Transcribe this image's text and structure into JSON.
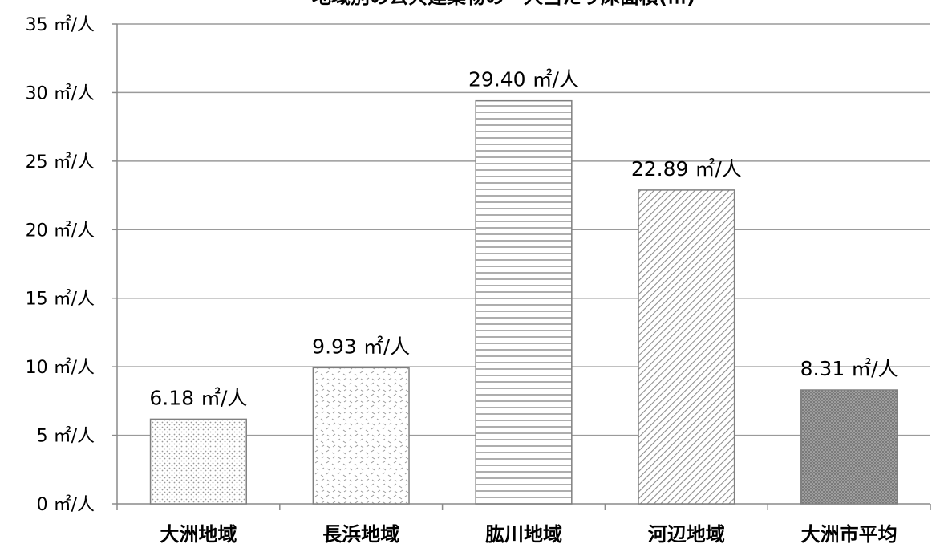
{
  "chart_data": {
    "type": "bar",
    "title": "地域別の公共建築物の一人当たり床面積(㎡)",
    "categories": [
      "大洲地域",
      "長浜地域",
      "肱川地域",
      "河辺地域",
      "大洲市平均"
    ],
    "values": [
      6.18,
      9.93,
      29.4,
      22.89,
      8.31
    ],
    "data_labels": [
      "6.18 ㎡/人",
      "9.93 ㎡/人",
      "29.40 ㎡/人",
      "22.89 ㎡/人",
      "8.31 ㎡/人"
    ],
    "y_ticks": [
      0,
      5,
      10,
      15,
      20,
      25,
      30,
      35
    ],
    "y_tick_labels": [
      "0 ㎡/人",
      "5 ㎡/人",
      "10 ㎡/人",
      "15 ㎡/人",
      "20 ㎡/人",
      "25 ㎡/人",
      "30 ㎡/人",
      "35 ㎡/人"
    ],
    "ylim": [
      0,
      35
    ],
    "grid": true,
    "legend": "none",
    "colors": {
      "bar_stroke": "#7f7f7f",
      "pattern": "#8c8c8c",
      "pattern_dark": "#7a7a7a",
      "gridline": "#9a9a9a",
      "axis": "#8a8a8a"
    },
    "bar_patterns": [
      "dots-light",
      "dashes",
      "horizontal-lines",
      "diagonal-lines",
      "dots-dense"
    ]
  }
}
